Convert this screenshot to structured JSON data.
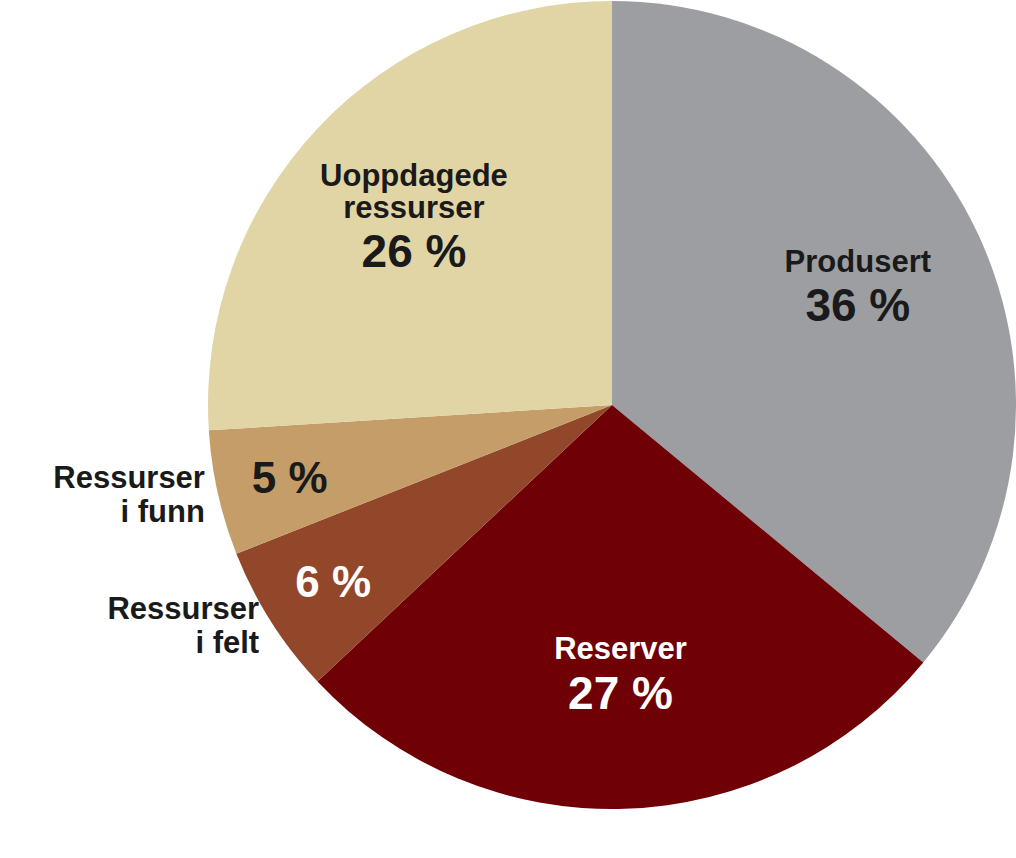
{
  "chart_data": {
    "type": "pie",
    "categories": [
      "Produsert",
      "Reserver",
      "Ressurser i felt",
      "Ressurser i funn",
      "Uoppdagede ressurser"
    ],
    "values": [
      36,
      27,
      6,
      5,
      26
    ],
    "value_labels": [
      "36 %",
      "27 %",
      "6 %",
      "5 %",
      "26 %"
    ],
    "colors": [
      "#9d9ea2",
      "#6e0006",
      "#93472a",
      "#c49d68",
      "#e1d5a5"
    ],
    "data_labels": true
  }
}
